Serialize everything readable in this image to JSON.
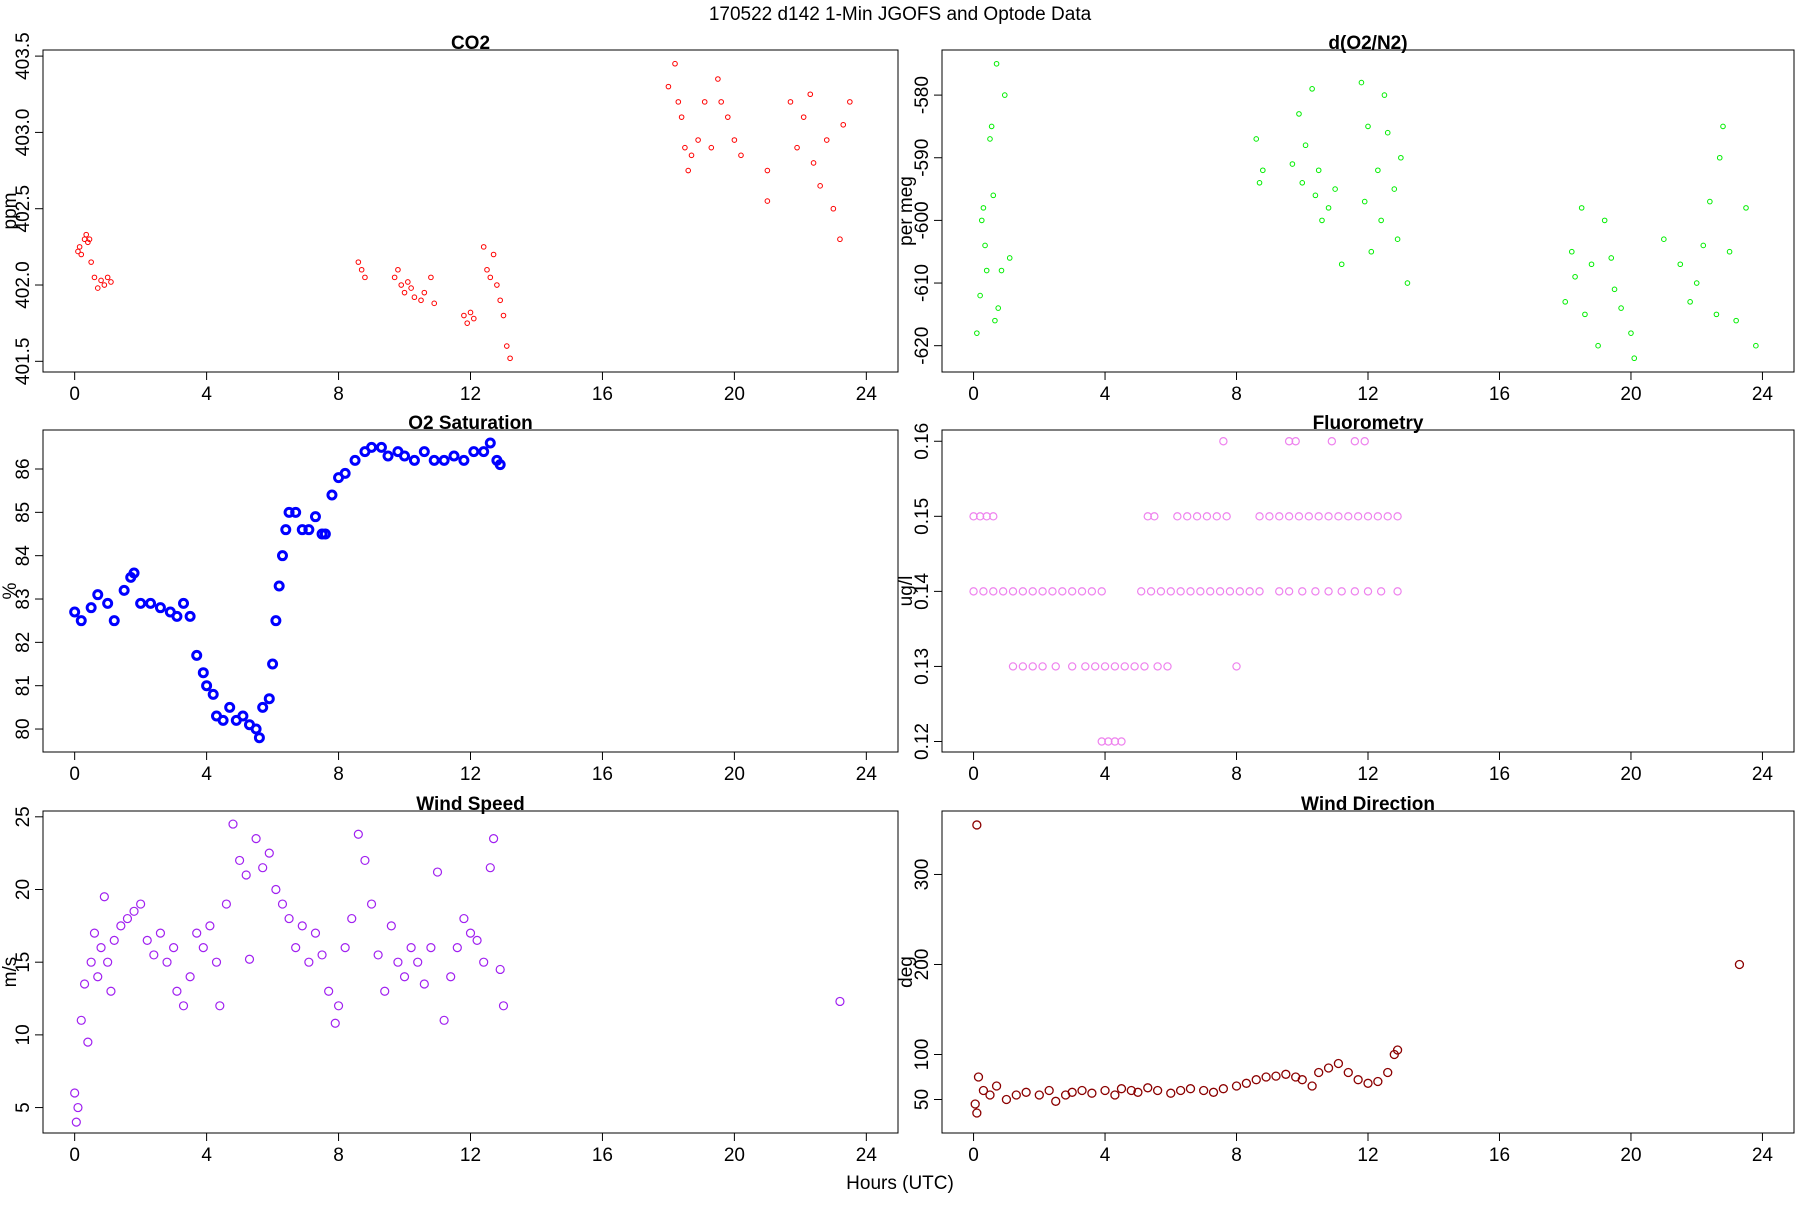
{
  "title": "170522   d142   1-Min  JGOFS and Optode Data",
  "xlabel": "Hours (UTC)",
  "chart_data": [
    {
      "type": "scatter",
      "title": "CO2",
      "ylabel": "ppm",
      "color": "#ff0000",
      "xlim": [
        -0.96,
        24.96
      ],
      "xticks": [
        0,
        4,
        8,
        12,
        16,
        20,
        24
      ],
      "ylim": [
        401.43,
        403.54
      ],
      "yticks": [
        401.5,
        {
          "value": 402,
          "label": "402.0"
        },
        402.5,
        {
          "value": 403,
          "label": "403.0"
        },
        403.5
      ],
      "x": [
        0.1,
        0.15,
        0.2,
        0.3,
        0.35,
        0.4,
        0.45,
        0.5,
        0.6,
        0.7,
        0.8,
        0.9,
        1.0,
        1.1,
        8.6,
        8.7,
        8.8,
        9.7,
        9.8,
        9.9,
        10.0,
        10.1,
        10.2,
        10.3,
        10.5,
        10.6,
        10.8,
        10.9,
        11.8,
        11.9,
        12.0,
        12.1,
        12.4,
        12.5,
        12.6,
        12.7,
        12.8,
        12.9,
        13.0,
        13.1,
        13.2,
        18.0,
        18.2,
        18.3,
        18.4,
        18.5,
        18.6,
        18.7,
        18.9,
        19.1,
        19.3,
        19.5,
        19.6,
        19.8,
        20.0,
        20.2,
        21.0,
        21.0,
        21.7,
        21.9,
        22.1,
        22.3,
        22.4,
        22.6,
        22.8,
        23.0,
        23.2,
        23.3,
        23.5
      ],
      "values": [
        402.22,
        402.25,
        402.2,
        402.3,
        402.33,
        402.28,
        402.3,
        402.15,
        402.05,
        401.98,
        402.03,
        402.0,
        402.05,
        402.02,
        402.15,
        402.1,
        402.05,
        402.05,
        402.1,
        402.0,
        401.95,
        402.02,
        401.98,
        401.92,
        401.9,
        401.95,
        402.05,
        401.88,
        401.8,
        401.75,
        401.82,
        401.78,
        402.25,
        402.1,
        402.05,
        402.2,
        402.0,
        401.9,
        401.8,
        401.6,
        401.52,
        403.3,
        403.45,
        403.2,
        403.1,
        402.9,
        402.75,
        402.85,
        402.95,
        403.2,
        402.9,
        403.35,
        403.2,
        403.1,
        402.95,
        402.85,
        402.55,
        402.75,
        403.2,
        402.9,
        403.1,
        403.25,
        402.8,
        402.65,
        402.95,
        402.5,
        402.3,
        403.05,
        403.2
      ]
    },
    {
      "type": "scatter",
      "title": "d(O2/N2)",
      "ylabel": "per meg",
      "color": "#00ee00",
      "xlim": [
        -0.96,
        24.96
      ],
      "xticks": [
        0,
        4,
        8,
        12,
        16,
        20,
        24
      ],
      "ylim": [
        -624.2,
        -572.8
      ],
      "yticks": [
        -620,
        -610,
        -600,
        -590,
        -580
      ],
      "x": [
        0.1,
        0.2,
        0.25,
        0.3,
        0.35,
        0.4,
        0.5,
        0.55,
        0.6,
        0.65,
        0.7,
        0.75,
        0.85,
        0.95,
        1.1,
        8.6,
        8.7,
        8.8,
        9.7,
        9.9,
        10.0,
        10.1,
        10.3,
        10.4,
        10.5,
        10.6,
        10.8,
        11.0,
        11.2,
        11.8,
        11.9,
        12.0,
        12.1,
        12.3,
        12.4,
        12.5,
        12.6,
        12.8,
        12.9,
        13.0,
        13.2,
        18.0,
        18.2,
        18.3,
        18.5,
        18.6,
        18.8,
        19.0,
        19.2,
        19.4,
        19.5,
        19.7,
        20.0,
        20.1,
        21.0,
        21.5,
        21.8,
        22.0,
        22.2,
        22.4,
        22.6,
        22.7,
        22.8,
        23.0,
        23.2,
        23.5,
        23.8
      ],
      "values": [
        -618,
        -612,
        -600,
        -598,
        -604,
        -608,
        -587,
        -585,
        -596,
        -616,
        -575,
        -614,
        -608,
        -580,
        -606,
        -587,
        -594,
        -592,
        -591,
        -583,
        -594,
        -588,
        -579,
        -596,
        -592,
        -600,
        -598,
        -595,
        -607,
        -578,
        -597,
        -585,
        -605,
        -592,
        -600,
        -580,
        -586,
        -595,
        -603,
        -590,
        -610,
        -613,
        -605,
        -609,
        -598,
        -615,
        -607,
        -620,
        -600,
        -606,
        -611,
        -614,
        -618,
        -622,
        -603,
        -607,
        -613,
        -610,
        -604,
        -597,
        -615,
        -590,
        -585,
        -605,
        -616,
        -598,
        -620
      ]
    },
    {
      "type": "scatter",
      "title": "O2 Saturation",
      "ylabel": "%",
      "color": "#0000ff",
      "xlim": [
        -0.96,
        24.96
      ],
      "xticks": [
        0,
        4,
        8,
        12,
        16,
        20,
        24
      ],
      "ylim": [
        79.47,
        86.9
      ],
      "yticks": [
        80,
        81,
        82,
        83,
        84,
        85,
        86
      ],
      "x": [
        0,
        0.2,
        0.5,
        0.7,
        1.0,
        1.2,
        1.5,
        1.7,
        1.8,
        2.0,
        2.3,
        2.6,
        2.9,
        3.1,
        3.3,
        3.5,
        3.7,
        3.9,
        4.0,
        4.2,
        4.3,
        4.5,
        4.7,
        4.9,
        5.1,
        5.3,
        5.5,
        5.6,
        5.7,
        5.9,
        6.0,
        6.1,
        6.2,
        6.3,
        6.4,
        6.5,
        6.7,
        6.9,
        7.1,
        7.3,
        7.5,
        7.6,
        7.8,
        8.0,
        8.2,
        8.5,
        8.8,
        9.0,
        9.3,
        9.5,
        9.8,
        10.0,
        10.3,
        10.6,
        10.9,
        11.2,
        11.5,
        11.8,
        12.1,
        12.4,
        12.6,
        12.8,
        12.9
      ],
      "values": [
        82.7,
        82.5,
        82.8,
        83.1,
        82.9,
        82.5,
        83.2,
        83.5,
        83.6,
        82.9,
        82.9,
        82.8,
        82.7,
        82.6,
        82.9,
        82.6,
        81.7,
        81.3,
        81.0,
        80.8,
        80.3,
        80.2,
        80.5,
        80.2,
        80.3,
        80.1,
        80.0,
        79.8,
        80.5,
        80.7,
        81.5,
        82.5,
        83.3,
        84.0,
        84.6,
        85.0,
        85.0,
        84.6,
        84.6,
        84.9,
        84.5,
        84.5,
        85.4,
        85.8,
        85.9,
        86.2,
        86.4,
        86.5,
        86.5,
        86.3,
        86.4,
        86.3,
        86.2,
        86.4,
        86.2,
        86.2,
        86.3,
        86.2,
        86.4,
        86.4,
        86.6,
        86.2,
        86.1
      ]
    },
    {
      "type": "scatter",
      "title": "Fluorometry",
      "ylabel": "ug/l",
      "color": "#ee82ee",
      "xlim": [
        -0.96,
        24.96
      ],
      "xticks": [
        0,
        4,
        8,
        12,
        16,
        20,
        24
      ],
      "ylim": [
        0.1186,
        0.1615
      ],
      "yticks": [
        0.12,
        0.13,
        0.14,
        0.15,
        0.16
      ],
      "x": [
        0.0,
        0.2,
        0.4,
        0.6,
        5.3,
        5.5,
        6.2,
        6.5,
        6.8,
        7.1,
        7.4,
        7.7,
        8.7,
        9.0,
        9.3,
        9.6,
        9.9,
        10.2,
        10.5,
        10.8,
        11.1,
        11.4,
        11.7,
        12.0,
        12.3,
        12.6,
        12.9,
        0.0,
        0.3,
        0.6,
        0.9,
        1.2,
        1.5,
        1.8,
        2.1,
        2.4,
        2.7,
        3.0,
        3.3,
        3.6,
        3.9,
        5.1,
        5.4,
        5.7,
        6.0,
        6.3,
        6.6,
        6.9,
        7.2,
        7.5,
        7.8,
        8.1,
        8.4,
        8.7,
        9.3,
        9.6,
        10.0,
        10.4,
        10.8,
        11.2,
        11.6,
        12.0,
        12.4,
        12.9,
        1.2,
        1.5,
        1.8,
        2.1,
        2.5,
        3.0,
        3.4,
        3.7,
        4.0,
        4.3,
        4.6,
        4.9,
        5.2,
        5.6,
        5.9,
        8.0,
        3.9,
        4.1,
        4.3,
        4.5,
        7.6,
        9.6,
        9.8,
        10.9,
        11.6,
        11.9
      ],
      "values": [
        0.15,
        0.15,
        0.15,
        0.15,
        0.15,
        0.15,
        0.15,
        0.15,
        0.15,
        0.15,
        0.15,
        0.15,
        0.15,
        0.15,
        0.15,
        0.15,
        0.15,
        0.15,
        0.15,
        0.15,
        0.15,
        0.15,
        0.15,
        0.15,
        0.15,
        0.15,
        0.15,
        0.14,
        0.14,
        0.14,
        0.14,
        0.14,
        0.14,
        0.14,
        0.14,
        0.14,
        0.14,
        0.14,
        0.14,
        0.14,
        0.14,
        0.14,
        0.14,
        0.14,
        0.14,
        0.14,
        0.14,
        0.14,
        0.14,
        0.14,
        0.14,
        0.14,
        0.14,
        0.14,
        0.14,
        0.14,
        0.14,
        0.14,
        0.14,
        0.14,
        0.14,
        0.14,
        0.14,
        0.14,
        0.13,
        0.13,
        0.13,
        0.13,
        0.13,
        0.13,
        0.13,
        0.13,
        0.13,
        0.13,
        0.13,
        0.13,
        0.13,
        0.13,
        0.13,
        0.13,
        0.12,
        0.12,
        0.12,
        0.12,
        0.16,
        0.16,
        0.16,
        0.16,
        0.16,
        0.16
      ]
    },
    {
      "type": "scatter",
      "title": "Wind Speed",
      "ylabel": "m/s",
      "color": "#a020f0",
      "xlim": [
        -0.96,
        24.96
      ],
      "xticks": [
        0,
        4,
        8,
        12,
        16,
        20,
        24
      ],
      "ylim": [
        3.25,
        25.4
      ],
      "yticks": [
        5,
        10,
        15,
        20,
        25
      ],
      "x": [
        0,
        0.05,
        0.1,
        0.2,
        0.3,
        0.4,
        0.5,
        0.6,
        0.7,
        0.8,
        0.9,
        1.0,
        1.1,
        1.2,
        1.4,
        1.6,
        1.8,
        2.0,
        2.2,
        2.4,
        2.6,
        2.8,
        3.0,
        3.1,
        3.3,
        3.5,
        3.7,
        3.9,
        4.1,
        4.3,
        4.4,
        4.6,
        4.8,
        5.0,
        5.2,
        5.3,
        5.5,
        5.7,
        5.9,
        6.1,
        6.3,
        6.5,
        6.7,
        6.9,
        7.1,
        7.3,
        7.5,
        7.7,
        7.9,
        8.0,
        8.2,
        8.4,
        8.6,
        8.8,
        9.0,
        9.2,
        9.4,
        9.6,
        9.8,
        10.0,
        10.2,
        10.4,
        10.6,
        10.8,
        11.0,
        11.2,
        11.4,
        11.6,
        11.8,
        12.0,
        12.2,
        12.4,
        12.6,
        12.7,
        12.9,
        13.0,
        23.2
      ],
      "values": [
        6,
        4,
        5,
        11,
        13.5,
        9.5,
        15,
        17,
        14,
        16,
        19.5,
        15,
        13,
        16.5,
        17.5,
        18,
        18.5,
        19,
        16.5,
        15.5,
        17,
        15,
        16,
        13,
        12,
        14,
        17,
        16,
        17.5,
        15,
        12,
        19,
        24.5,
        22,
        21,
        15.2,
        23.5,
        21.5,
        22.5,
        20,
        19,
        18,
        16,
        17.5,
        15,
        17,
        15.5,
        13,
        10.8,
        12,
        16,
        18,
        23.8,
        22,
        19,
        15.5,
        13,
        17.5,
        15,
        14,
        16,
        15,
        13.5,
        16,
        21.2,
        11,
        14,
        16,
        18,
        17,
        16.5,
        15,
        21.5,
        23.5,
        14.5,
        12,
        12.3
      ]
    },
    {
      "type": "scatter",
      "title": "Wind Direction",
      "ylabel": "deg",
      "color": "#8b0000",
      "xlim": [
        -0.96,
        24.96
      ],
      "xticks": [
        0,
        4,
        8,
        12,
        16,
        20,
        24
      ],
      "ylim": [
        12.8,
        370.5
      ],
      "yticks": [
        50,
        100,
        200,
        300
      ],
      "x": [
        0.1,
        0.05,
        0.1,
        0.15,
        0.3,
        0.5,
        0.7,
        1.0,
        1.3,
        1.6,
        2.0,
        2.3,
        2.5,
        2.8,
        3.0,
        3.3,
        3.6,
        4.0,
        4.3,
        4.5,
        4.8,
        5.0,
        5.3,
        5.6,
        6.0,
        6.3,
        6.6,
        7.0,
        7.3,
        7.6,
        8.0,
        8.3,
        8.6,
        8.9,
        9.2,
        9.5,
        9.8,
        10.0,
        10.3,
        10.5,
        10.8,
        11.1,
        11.4,
        11.7,
        12.0,
        12.3,
        12.6,
        12.8,
        12.9,
        23.3
      ],
      "values": [
        355,
        45,
        35,
        75,
        60,
        55,
        65,
        50,
        55,
        58,
        55,
        60,
        48,
        55,
        58,
        60,
        57,
        60,
        55,
        62,
        60,
        58,
        63,
        60,
        57,
        60,
        62,
        60,
        58,
        62,
        65,
        68,
        72,
        75,
        76,
        78,
        75,
        72,
        65,
        80,
        85,
        90,
        80,
        72,
        68,
        70,
        80,
        100,
        105,
        200
      ]
    }
  ]
}
